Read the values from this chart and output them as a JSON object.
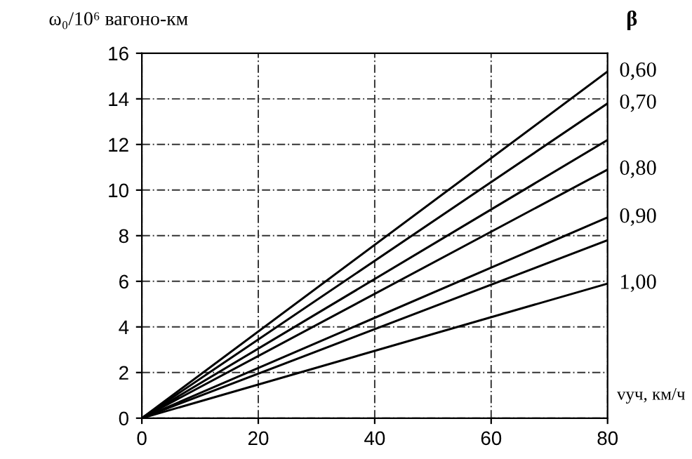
{
  "chart_data": {
    "type": "line",
    "ylabel": "ω₀/10⁶ вагоно-км",
    "xlabel": "vуч, км/ч",
    "legend_title": "β",
    "x": [
      0,
      80
    ],
    "series": [
      {
        "name": "0,60",
        "color": "#000000",
        "values": [
          0,
          15.2
        ]
      },
      {
        "name": "0,70",
        "color": "#000000",
        "values": [
          0,
          13.8
        ]
      },
      {
        "color": "#000000",
        "values": [
          0,
          12.2
        ]
      },
      {
        "name": "0,80",
        "color": "#000000",
        "values": [
          0,
          10.9
        ]
      },
      {
        "name": "0,90",
        "color": "#000000",
        "values": [
          0,
          8.8
        ]
      },
      {
        "color": "#000000",
        "values": [
          0,
          7.8
        ]
      },
      {
        "name": "1,00",
        "color": "#000000",
        "values": [
          0,
          5.9
        ]
      }
    ],
    "xlim": [
      0,
      80
    ],
    "xticks": [
      0,
      20,
      40,
      60,
      80
    ],
    "ylim": [
      0,
      16
    ],
    "yticks": [
      0,
      2,
      4,
      6,
      8,
      10,
      12,
      14,
      16
    ],
    "grid": true,
    "marker": "none",
    "line_style": "solid"
  }
}
